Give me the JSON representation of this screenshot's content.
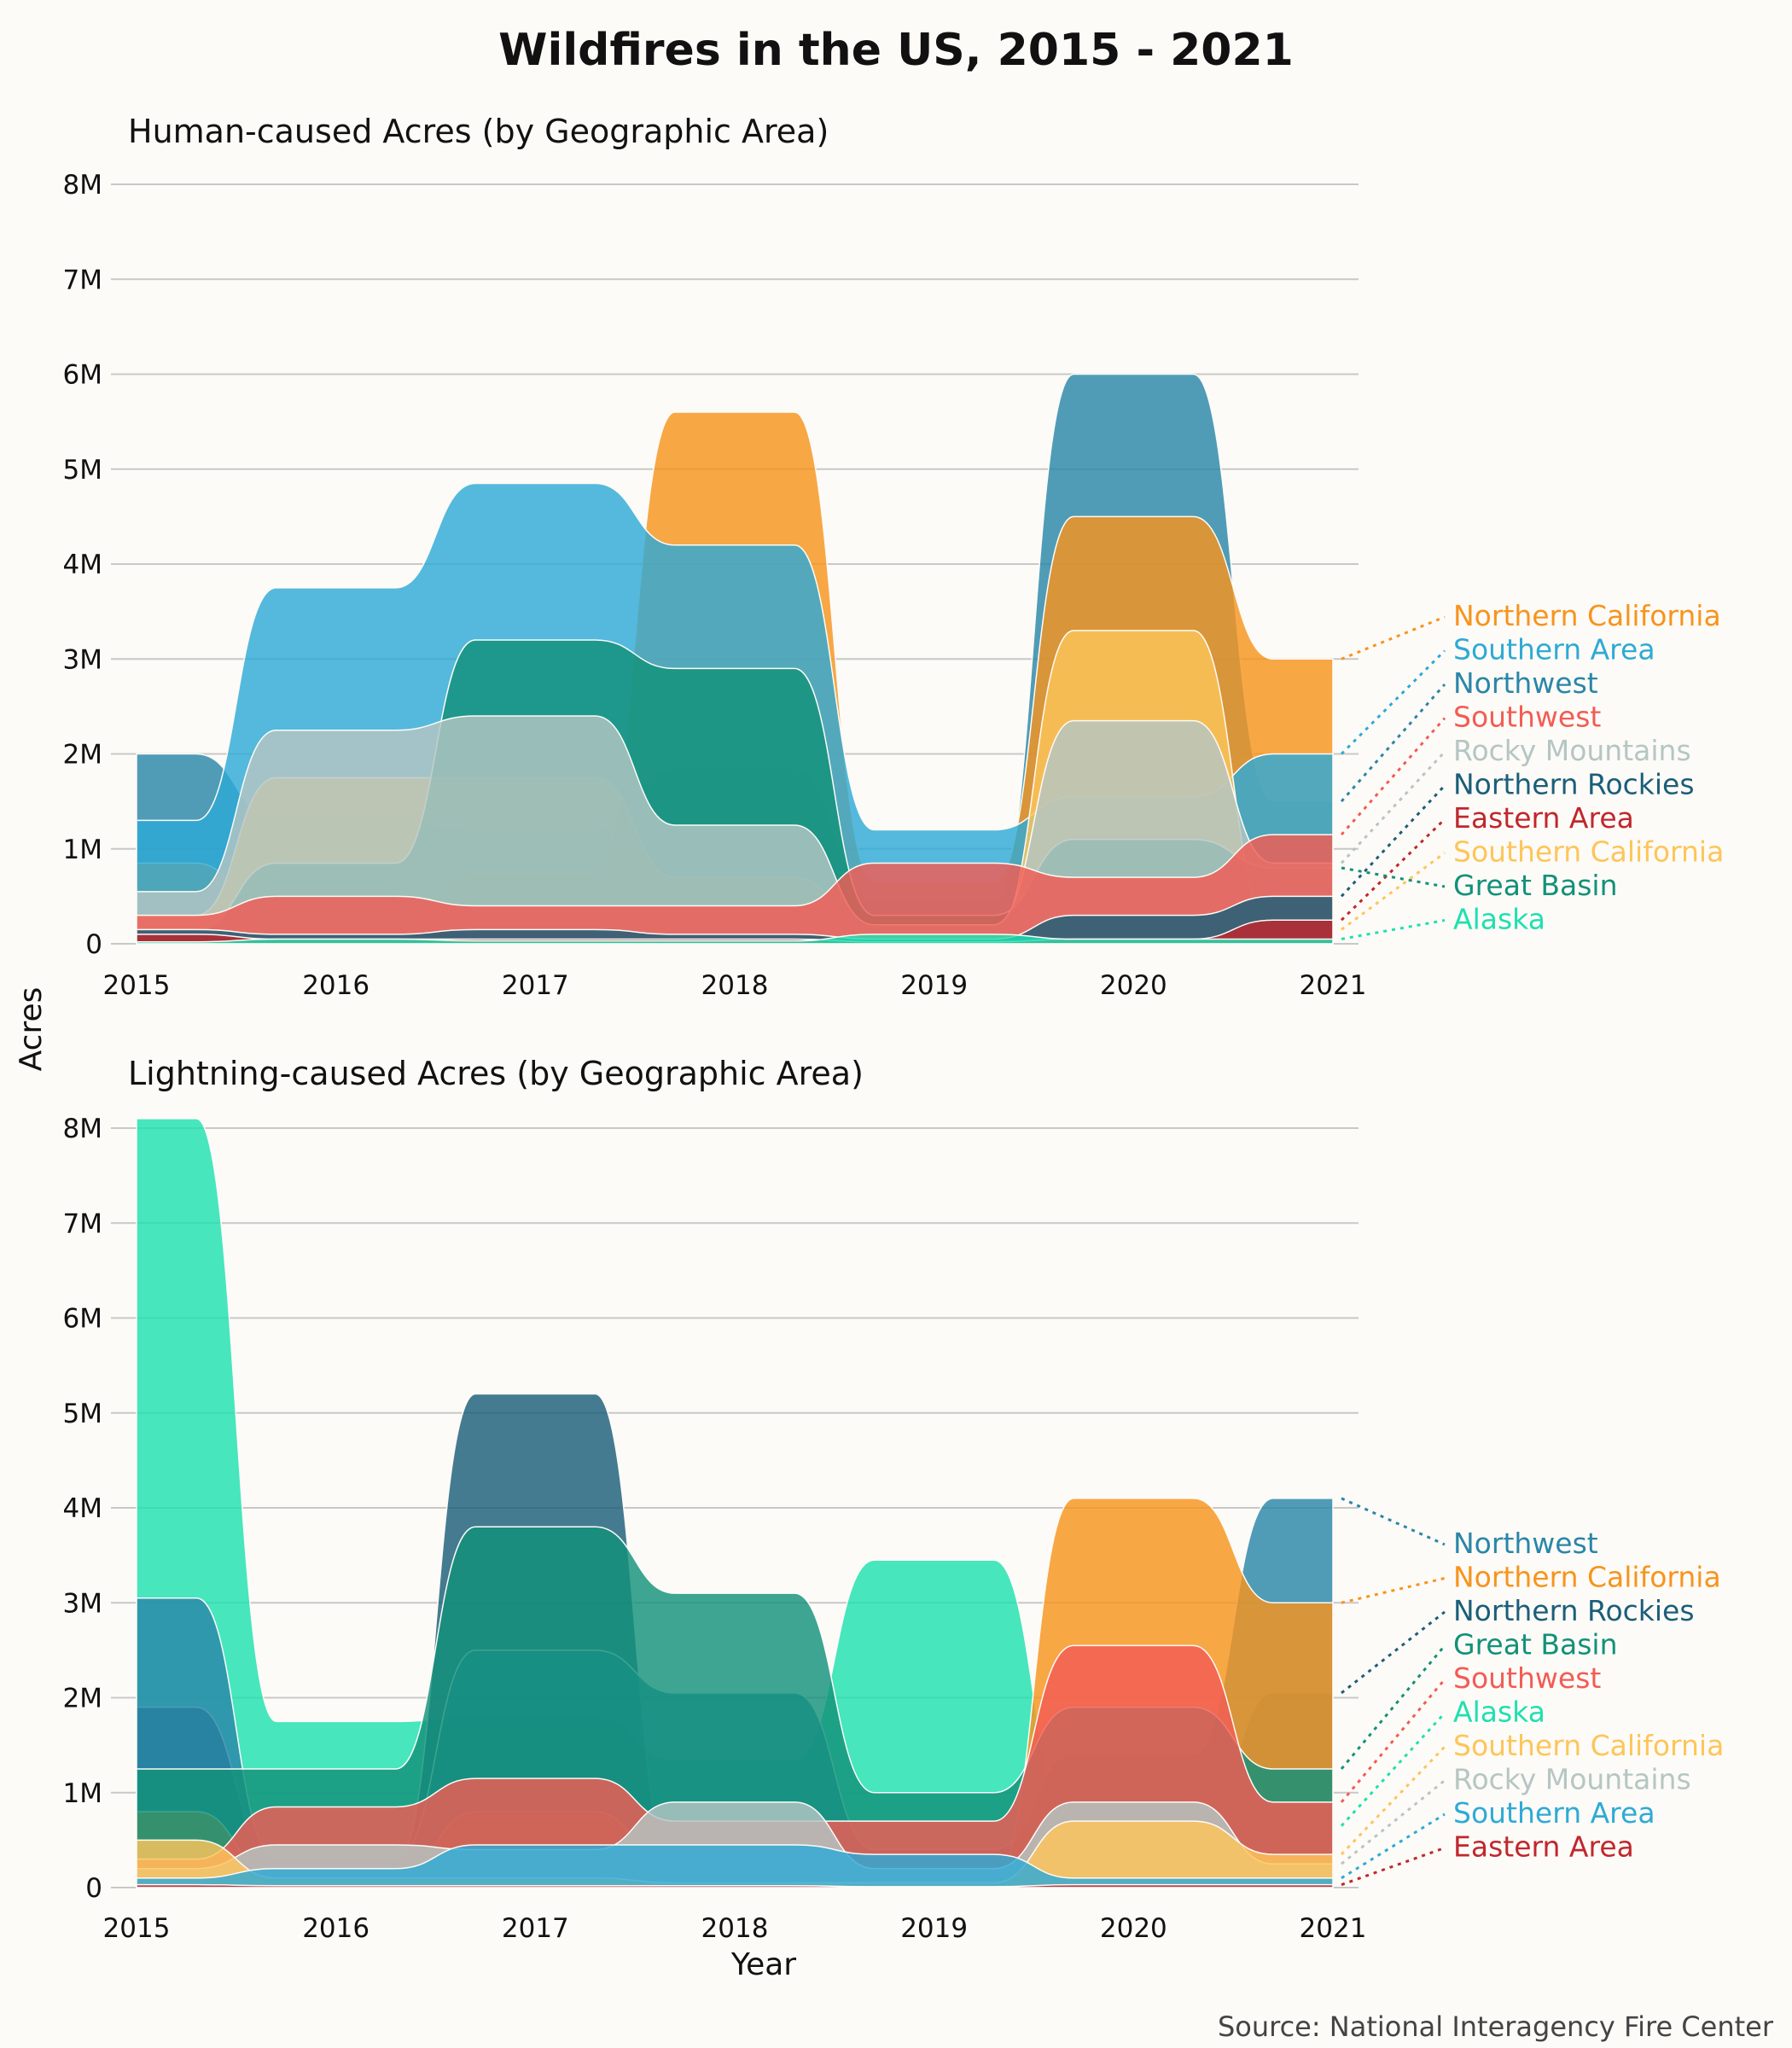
{
  "title": "Wildfires in the US, 2015 - 2021",
  "source": "Source: National Interagency Fire Center",
  "shared_ylabel": "Acres",
  "colors": {
    "Northern California": "#f7941d",
    "Southern Area": "#2eaad6",
    "Northwest": "#2a86a8",
    "Southwest": "#f25c54",
    "Rocky Mountains": "#b5c6c3",
    "Northern Rockies": "#1b5e7a",
    "Eastern Area": "#c0272d",
    "Southern California": "#fdc55a",
    "Great Basin": "#12917a",
    "Alaska": "#1fe0b0"
  },
  "chart_data": [
    {
      "type": "area",
      "title": "Human-caused Acres (by Geographic Area)",
      "xlabel": "",
      "ylabel": "Acres",
      "x": [
        2015,
        2016,
        2017,
        2018,
        2019,
        2020,
        2021
      ],
      "ylim": [
        0,
        8000000
      ],
      "yticks": [
        "0",
        "1M",
        "2M",
        "3M",
        "4M",
        "5M",
        "6M",
        "7M",
        "8M"
      ],
      "grid": true,
      "legend": "right",
      "series": [
        {
          "name": "Northern California",
          "values": [
            850000,
            200000,
            750000,
            5600000,
            650000,
            4500000,
            3000000
          ]
        },
        {
          "name": "Southern Area",
          "values": [
            1300000,
            3750000,
            4850000,
            4200000,
            1200000,
            1550000,
            2000000
          ]
        },
        {
          "name": "Northwest",
          "values": [
            2000000,
            1300000,
            1200000,
            1850000,
            450000,
            6000000,
            1500000
          ]
        },
        {
          "name": "Southwest",
          "values": [
            300000,
            500000,
            400000,
            400000,
            850000,
            700000,
            1150000
          ]
        },
        {
          "name": "Rocky Mountains",
          "values": [
            550000,
            2250000,
            2400000,
            1250000,
            200000,
            2350000,
            850000
          ]
        },
        {
          "name": "Northern Rockies",
          "values": [
            150000,
            100000,
            150000,
            100000,
            50000,
            300000,
            500000
          ]
        },
        {
          "name": "Eastern Area",
          "values": [
            100000,
            50000,
            50000,
            50000,
            20000,
            50000,
            250000
          ]
        },
        {
          "name": "Southern California",
          "values": [
            300000,
            1750000,
            1750000,
            700000,
            100000,
            3300000,
            150000
          ]
        },
        {
          "name": "Great Basin",
          "values": [
            150000,
            850000,
            3200000,
            2900000,
            300000,
            1100000,
            800000
          ]
        },
        {
          "name": "Alaska",
          "values": [
            20000,
            50000,
            30000,
            30000,
            100000,
            50000,
            50000
          ]
        }
      ],
      "legend_order": [
        "Northern California",
        "Southern Area",
        "Northwest",
        "Southwest",
        "Rocky Mountains",
        "Northern Rockies",
        "Eastern Area",
        "Southern California",
        "Great Basin",
        "Alaska"
      ]
    },
    {
      "type": "area",
      "title": "Lightning-caused Acres (by Geographic Area)",
      "xlabel": "Year",
      "ylabel": "Acres",
      "x": [
        2015,
        2016,
        2017,
        2018,
        2019,
        2020,
        2021
      ],
      "ylim": [
        0,
        8000000
      ],
      "yticks": [
        "0",
        "1M",
        "2M",
        "3M",
        "4M",
        "5M",
        "6M",
        "7M",
        "8M"
      ],
      "grid": true,
      "legend": "right",
      "series": [
        {
          "name": "Northwest",
          "values": [
            3050000,
            300000,
            2500000,
            2050000,
            400000,
            1400000,
            4100000
          ]
        },
        {
          "name": "Northern California",
          "values": [
            800000,
            100000,
            800000,
            150000,
            100000,
            4100000,
            3000000
          ]
        },
        {
          "name": "Northern Rockies",
          "values": [
            1900000,
            250000,
            5200000,
            200000,
            250000,
            300000,
            2050000
          ]
        },
        {
          "name": "Great Basin",
          "values": [
            1250000,
            1250000,
            3800000,
            3100000,
            1000000,
            1900000,
            1250000
          ]
        },
        {
          "name": "Southwest",
          "values": [
            300000,
            850000,
            1150000,
            700000,
            700000,
            2550000,
            900000
          ]
        },
        {
          "name": "Alaska",
          "values": [
            8100000,
            1750000,
            1800000,
            1350000,
            3450000,
            550000,
            650000
          ]
        },
        {
          "name": "Southern California",
          "values": [
            500000,
            100000,
            100000,
            50000,
            50000,
            700000,
            350000
          ]
        },
        {
          "name": "Rocky Mountains",
          "values": [
            200000,
            450000,
            400000,
            900000,
            200000,
            900000,
            250000
          ]
        },
        {
          "name": "Southern Area",
          "values": [
            100000,
            200000,
            450000,
            450000,
            350000,
            100000,
            100000
          ]
        },
        {
          "name": "Eastern Area",
          "values": [
            30000,
            20000,
            20000,
            20000,
            10000,
            30000,
            30000
          ]
        }
      ],
      "legend_order": [
        "Northwest",
        "Northern California",
        "Northern Rockies",
        "Great Basin",
        "Southwest",
        "Alaska",
        "Southern California",
        "Rocky Mountains",
        "Southern Area",
        "Eastern Area"
      ]
    }
  ]
}
